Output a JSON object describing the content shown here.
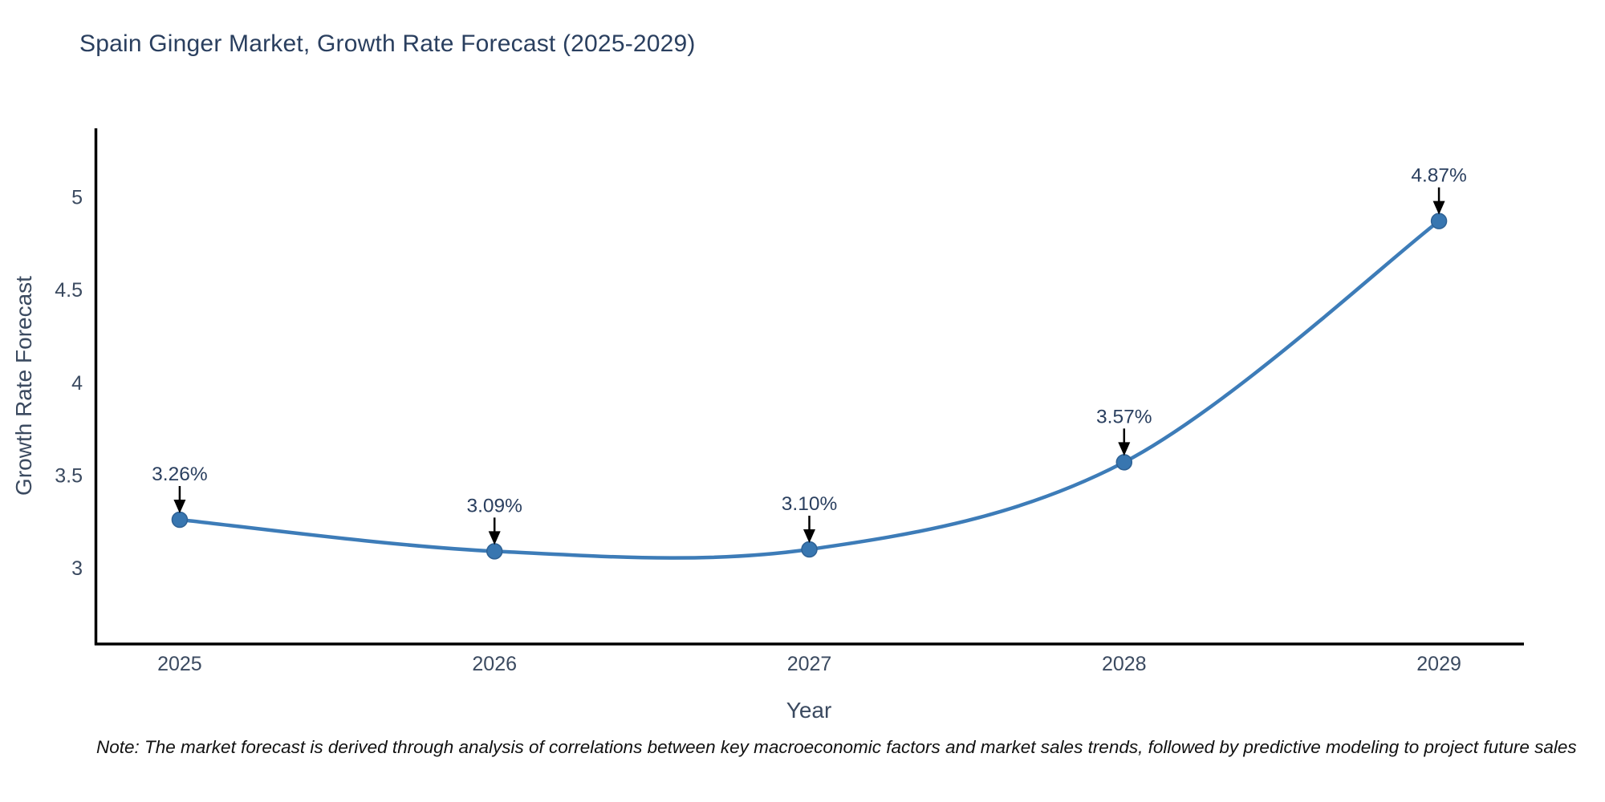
{
  "title": "Spain Ginger Market, Growth Rate Forecast (2025-2029)",
  "note": "Note: The market forecast is derived through analysis of correlations between key macroeconomic factors and market sales trends, followed by predictive modeling to project future sales",
  "chart_data": {
    "type": "line",
    "title": "Spain Ginger Market, Growth Rate Forecast (2025-2029)",
    "xlabel": "Year",
    "ylabel": "Growth Rate Forecast",
    "x": [
      2025,
      2026,
      2027,
      2028,
      2029
    ],
    "values": [
      3.26,
      3.09,
      3.1,
      3.57,
      4.87
    ],
    "point_labels": [
      "3.26%",
      "3.09%",
      "3.10%",
      "3.57%",
      "4.87%"
    ],
    "xticks": [
      "2025",
      "2026",
      "2027",
      "2028",
      "2029"
    ],
    "yticks": [
      3,
      3.5,
      4,
      4.5,
      5
    ],
    "xlim": [
      2024.73,
      2029.27
    ],
    "ylim": [
      2.59,
      5.37
    ],
    "grid": false,
    "legend": "none",
    "line_style": "spline",
    "annotations": "value labels with downward arrows above each point",
    "colors": {
      "line": "#3d7cb8",
      "marker_fill": "#3876b0",
      "marker_edge": "#2e6194",
      "axis_line": "#000000",
      "title_text": "#2a3f5f",
      "tick_text": "#3b4a60",
      "annotation_text": "#2a3f5f",
      "annotation_arrow": "#000000",
      "note_text": "#111111",
      "background": "#ffffff"
    }
  }
}
